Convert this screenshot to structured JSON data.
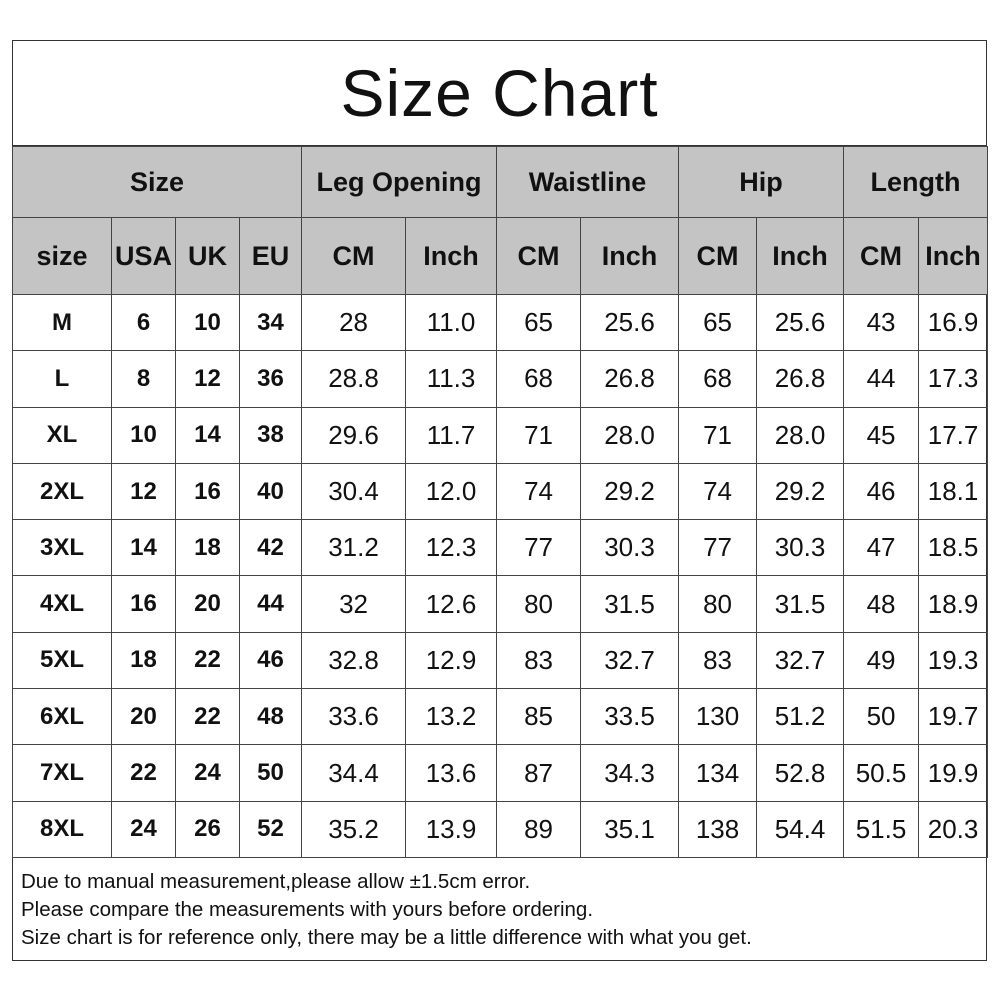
{
  "title": "Size Chart",
  "groups": [
    "Size",
    "Leg Opening",
    "Waistline",
    "Hip",
    "Length"
  ],
  "subheaders": [
    "size",
    "USA",
    "UK",
    "EU",
    "CM",
    "Inch",
    "CM",
    "Inch",
    "CM",
    "Inch",
    "CM",
    "Inch"
  ],
  "rows": [
    [
      "M",
      "6",
      "10",
      "34",
      "28",
      "11.0",
      "65",
      "25.6",
      "65",
      "25.6",
      "43",
      "16.9"
    ],
    [
      "L",
      "8",
      "12",
      "36",
      "28.8",
      "11.3",
      "68",
      "26.8",
      "68",
      "26.8",
      "44",
      "17.3"
    ],
    [
      "XL",
      "10",
      "14",
      "38",
      "29.6",
      "11.7",
      "71",
      "28.0",
      "71",
      "28.0",
      "45",
      "17.7"
    ],
    [
      "2XL",
      "12",
      "16",
      "40",
      "30.4",
      "12.0",
      "74",
      "29.2",
      "74",
      "29.2",
      "46",
      "18.1"
    ],
    [
      "3XL",
      "14",
      "18",
      "42",
      "31.2",
      "12.3",
      "77",
      "30.3",
      "77",
      "30.3",
      "47",
      "18.5"
    ],
    [
      "4XL",
      "16",
      "20",
      "44",
      "32",
      "12.6",
      "80",
      "31.5",
      "80",
      "31.5",
      "48",
      "18.9"
    ],
    [
      "5XL",
      "18",
      "22",
      "46",
      "32.8",
      "12.9",
      "83",
      "32.7",
      "83",
      "32.7",
      "49",
      "19.3"
    ],
    [
      "6XL",
      "20",
      "22",
      "48",
      "33.6",
      "13.2",
      "85",
      "33.5",
      "130",
      "51.2",
      "50",
      "19.7"
    ],
    [
      "7XL",
      "22",
      "24",
      "50",
      "34.4",
      "13.6",
      "87",
      "34.3",
      "134",
      "52.8",
      "50.5",
      "19.9"
    ],
    [
      "8XL",
      "24",
      "26",
      "52",
      "35.2",
      "13.9",
      "89",
      "35.1",
      "138",
      "54.4",
      "51.5",
      "20.3"
    ]
  ],
  "notes": [
    "Due to manual measurement,please allow ±1.5cm error.",
    "Please compare the measurements with yours before ordering.",
    "Size chart is for reference only,  there may be a little difference with what you get."
  ],
  "colors": {
    "header_bg": "#c4c4c4",
    "border": "#444444"
  }
}
